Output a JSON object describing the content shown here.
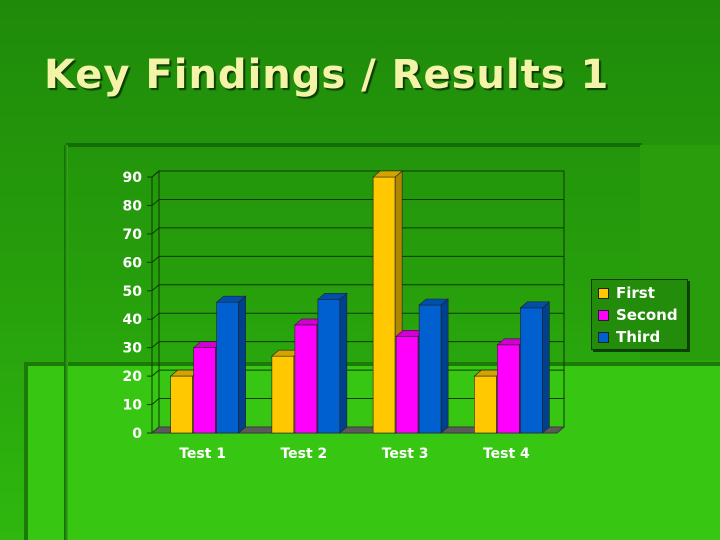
{
  "slide": {
    "title": "Key Findings / Results 1"
  },
  "colors": {
    "first": "#ffc800",
    "second": "#ff00ff",
    "third": "#0060d0",
    "background": "#27a00c",
    "title": "#f4f4a8"
  },
  "chart_data": {
    "type": "bar",
    "categories": [
      "Test 1",
      "Test 2",
      "Test 3",
      "Test 4"
    ],
    "series": [
      {
        "name": "First",
        "values": [
          20,
          27,
          90,
          20
        ],
        "color": "#ffc800"
      },
      {
        "name": "Second",
        "values": [
          30,
          38,
          34,
          31
        ],
        "color": "#ff00ff"
      },
      {
        "name": "Third",
        "values": [
          46,
          47,
          45,
          44
        ],
        "color": "#0060d0"
      }
    ],
    "ylim": [
      0,
      90
    ],
    "yticks": [
      0,
      10,
      20,
      30,
      40,
      50,
      60,
      70,
      80,
      90
    ],
    "grid": true,
    "legend": "right",
    "three_d": true
  }
}
